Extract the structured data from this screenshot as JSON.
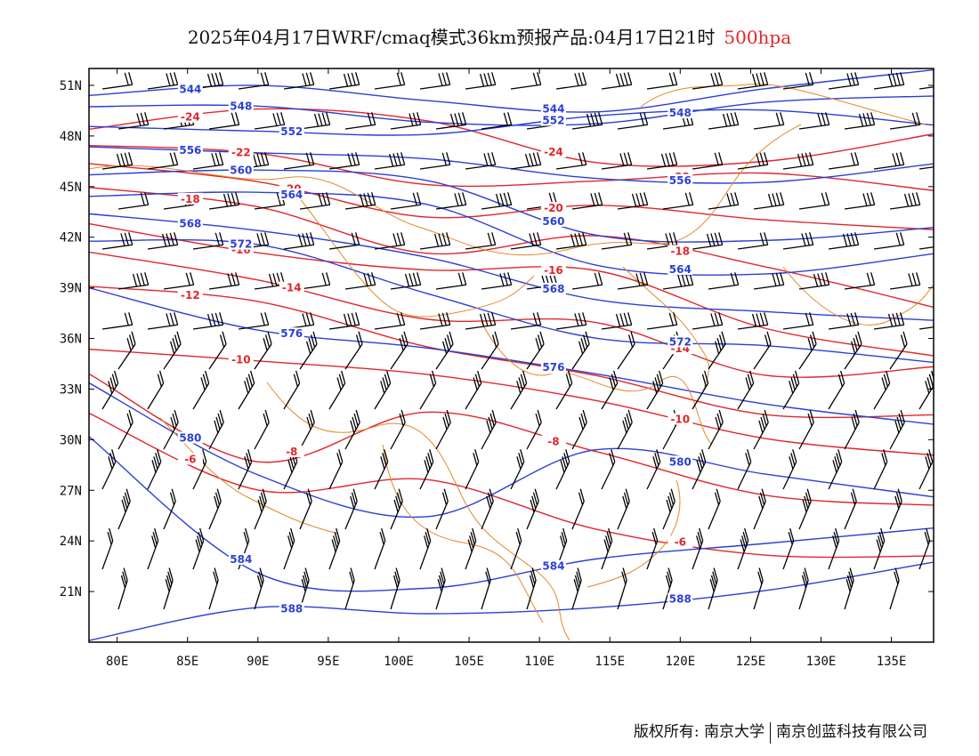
{
  "title": {
    "text": "2025年04月17日WRF/cmaq模式36km预报产品:04月17日21时",
    "level": "500hpa"
  },
  "colors": {
    "height_contour": "#2a3fd6",
    "temperature_contour": "#e2262b",
    "border": "#e08a2a",
    "wind_barb": "#000000"
  },
  "map": {
    "extent": {
      "lon_min": 78,
      "lon_max": 138,
      "lat_min": 18,
      "lat_max": 52
    },
    "lat_labels": [
      "51N",
      "48N",
      "45N",
      "42N",
      "39N",
      "36N",
      "33N",
      "30N",
      "27N",
      "24N",
      "21N"
    ],
    "lat_values": [
      51,
      48,
      45,
      42,
      39,
      36,
      33,
      30,
      27,
      24,
      21
    ],
    "lon_labels": [
      "80E",
      "85E",
      "90E",
      "95E",
      "100E",
      "105E",
      "110E",
      "115E",
      "120E",
      "125E",
      "130E",
      "135E"
    ],
    "lon_values": [
      80,
      85,
      90,
      95,
      100,
      105,
      110,
      115,
      120,
      125,
      130,
      135
    ],
    "height_contours": [
      {
        "label": "544",
        "lats": [
          50.4,
          50.6,
          50.2,
          49.8,
          50.6,
          51.6
        ]
      },
      {
        "label": "548",
        "lats": [
          49.4,
          49.6,
          49.2,
          48.8,
          49.6,
          50.4
        ]
      },
      {
        "label": "552",
        "lats": [
          48.2,
          48.5,
          48.4,
          48.9,
          49.3,
          49.0
        ]
      },
      {
        "label": "556",
        "lats": [
          47.3,
          47.4,
          46.6,
          45.1,
          45.4,
          46.7
        ]
      },
      {
        "label": "560",
        "lats": [
          46.0,
          46.2,
          45.0,
          42.0,
          42.2,
          42.6
        ]
      },
      {
        "label": "564",
        "lats": [
          44.8,
          44.5,
          43.6,
          40.6,
          40.1,
          40.7
        ]
      },
      {
        "label": "568",
        "lats": [
          43.5,
          42.0,
          40.8,
          38.7,
          37.5,
          36.7
        ]
      },
      {
        "label": "572",
        "lats": [
          41.5,
          41.3,
          39.0,
          36.2,
          35.2,
          34.5
        ]
      },
      {
        "label": "576",
        "lats": [
          38.6,
          36.6,
          35.8,
          33.7,
          31.8,
          31.2
        ]
      },
      {
        "label": "580",
        "lats": [
          33.2,
          28.3,
          25.5,
          29.0,
          28.0,
          27.0
        ]
      },
      {
        "label": "584",
        "lats": [
          30.4,
          22.4,
          20.9,
          22.7,
          24.2,
          24.9
        ]
      },
      {
        "label": "588",
        "lats": [
          18.5,
          20.0,
          19.3,
          20.2,
          21.4,
          22.5
        ]
      }
    ],
    "temperature_contours": [
      {
        "label": "-24",
        "lats": [
          48.4,
          49.2,
          49.0,
          46.8,
          46.3,
          47.8
        ]
      },
      {
        "label": "-22",
        "lats": [
          47.1,
          46.8,
          45.5,
          45.4,
          45.4,
          44.8
        ]
      },
      {
        "label": "-20",
        "lats": [
          46.0,
          45.5,
          43.5,
          43.6,
          42.8,
          42.8
        ]
      },
      {
        "label": "-18",
        "lats": [
          44.9,
          44.2,
          41.0,
          41.7,
          40.4,
          38.2
        ]
      },
      {
        "label": "-16",
        "lats": [
          43.1,
          41.3,
          39.7,
          39.9,
          37.0,
          35.0
        ]
      },
      {
        "label": "-14",
        "lats": [
          41.5,
          39.3,
          36.8,
          37.2,
          34.1,
          34.0
        ]
      },
      {
        "label": "-12",
        "lats": [
          39.2,
          37.8,
          35.5,
          34.2,
          31.4,
          31.1
        ]
      },
      {
        "label": "-10",
        "lats": [
          35.1,
          34.4,
          34.2,
          32.5,
          29.7,
          29.0
        ]
      },
      {
        "label": "-8",
        "lats": [
          33.5,
          28.8,
          32.0,
          29.1,
          26.4,
          26.4
        ]
      },
      {
        "label": "-6",
        "lats": [
          31.4,
          27.4,
          27.7,
          24.3,
          23.2,
          23.5
        ]
      }
    ]
  },
  "credits": {
    "owner": "版权所有: 南京大学",
    "company": "南京创蓝科技有限公司"
  }
}
